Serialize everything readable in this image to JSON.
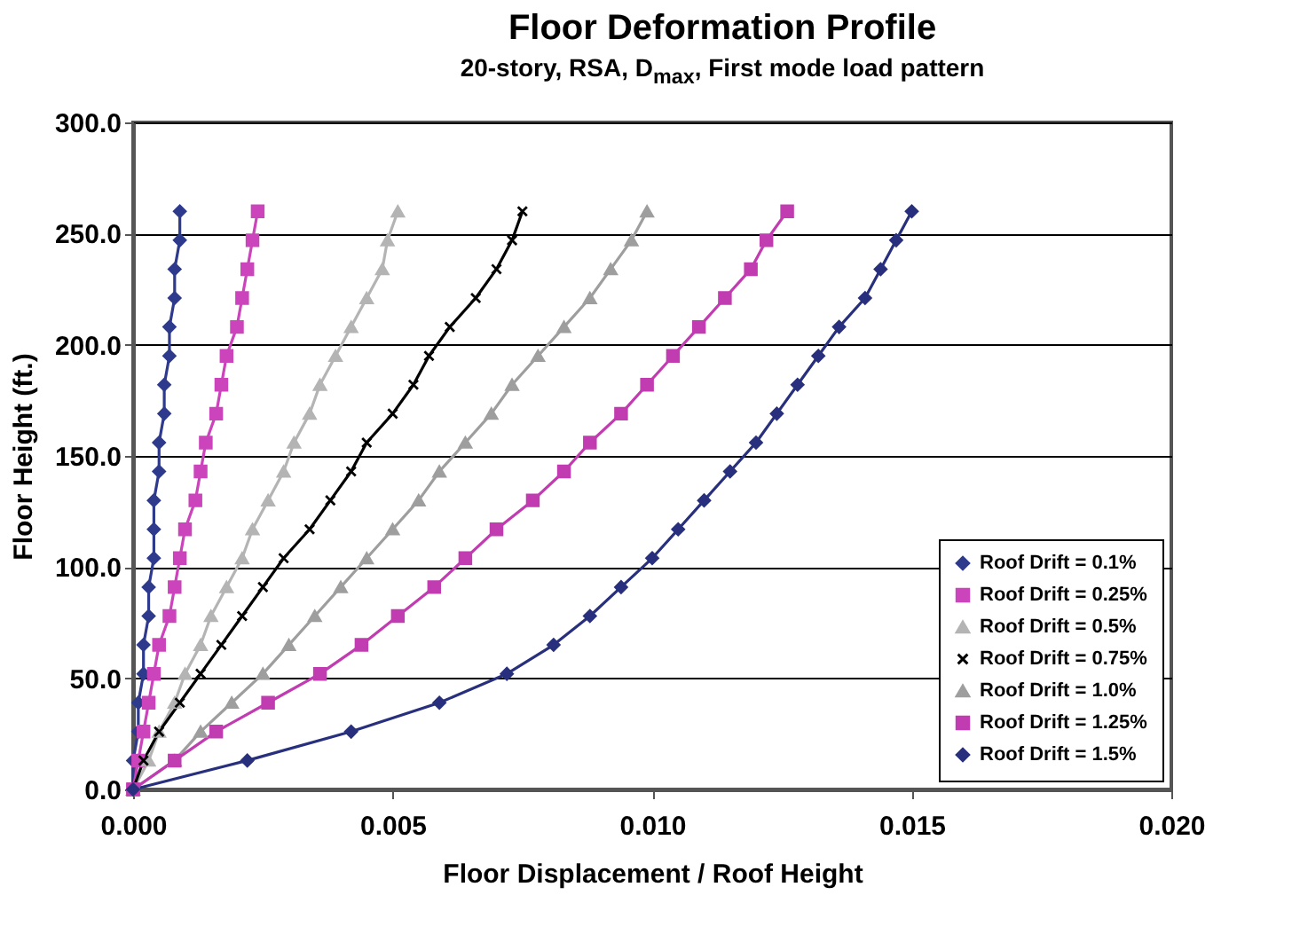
{
  "chart_data": {
    "type": "line",
    "title": "Floor Deformation Profile",
    "subtitle": "20-story, RSA, D$_{max}$, First mode load pattern",
    "xlabel": "Floor Displacement / Roof Height",
    "ylabel": "Floor Height (ft.)",
    "series": [
      {
        "name": "Roof Drift = 0.1%",
        "color": "#2e3a8c",
        "marker": "diamond",
        "x": [
          0,
          0,
          0.0001,
          0.0001,
          0.0002,
          0.0002,
          0.0003,
          0.0003,
          0.0004,
          0.0004,
          0.0004,
          0.0005,
          0.0005,
          0.0006,
          0.0006,
          0.0007,
          0.0007,
          0.0008,
          0.0008,
          0.0009,
          0.0009
        ],
        "values": [
          0,
          13,
          26,
          39,
          52,
          65,
          78,
          91,
          104,
          117,
          130,
          143,
          156,
          169,
          182,
          195,
          208,
          221,
          234,
          247,
          260
        ]
      },
      {
        "name": "Roof Drift = 0.25%",
        "color": "#cc44bb",
        "marker": "square",
        "x": [
          0,
          0.0001,
          0.0002,
          0.0003,
          0.0004,
          0.0005,
          0.0007,
          0.0008,
          0.0009,
          0.001,
          0.0012,
          0.0013,
          0.0014,
          0.0016,
          0.0017,
          0.0018,
          0.002,
          0.0021,
          0.0022,
          0.0023,
          0.0024
        ],
        "values": [
          0,
          13,
          26,
          39,
          52,
          65,
          78,
          91,
          104,
          117,
          130,
          143,
          156,
          169,
          182,
          195,
          208,
          221,
          234,
          247,
          260
        ]
      },
      {
        "name": "Roof Drift = 0.5%",
        "color": "#b4b4b4",
        "marker": "triangle",
        "x": [
          0,
          0.0003,
          0.0005,
          0.0008,
          0.001,
          0.0013,
          0.0015,
          0.0018,
          0.0021,
          0.0023,
          0.0026,
          0.0029,
          0.0031,
          0.0034,
          0.0036,
          0.0039,
          0.0042,
          0.0045,
          0.0048,
          0.0049,
          0.0051
        ],
        "values": [
          0,
          13,
          26,
          39,
          52,
          65,
          78,
          91,
          104,
          117,
          130,
          143,
          156,
          169,
          182,
          195,
          208,
          221,
          234,
          247,
          260
        ]
      },
      {
        "name": "Roof Drift = 0.75%",
        "color": "#000000",
        "marker": "cross",
        "x": [
          0,
          0.0002,
          0.0005,
          0.0009,
          0.0013,
          0.0017,
          0.0021,
          0.0025,
          0.0029,
          0.0034,
          0.0038,
          0.0042,
          0.0045,
          0.005,
          0.0054,
          0.0057,
          0.0061,
          0.0066,
          0.007,
          0.0073,
          0.0075
        ],
        "values": [
          0,
          13,
          26,
          39,
          52,
          65,
          78,
          91,
          104,
          117,
          130,
          143,
          156,
          169,
          182,
          195,
          208,
          221,
          234,
          247,
          260
        ]
      },
      {
        "name": "Roof Drift = 1.0%",
        "color": "#9e9e9e",
        "marker": "triangle",
        "x": [
          0,
          0.0008,
          0.0013,
          0.0019,
          0.0025,
          0.003,
          0.0035,
          0.004,
          0.0045,
          0.005,
          0.0055,
          0.0059,
          0.0064,
          0.0069,
          0.0073,
          0.0078,
          0.0083,
          0.0088,
          0.0092,
          0.0096,
          0.0099
        ],
        "values": [
          0,
          13,
          26,
          39,
          52,
          65,
          78,
          91,
          104,
          117,
          130,
          143,
          156,
          169,
          182,
          195,
          208,
          221,
          234,
          247,
          260
        ]
      },
      {
        "name": "Roof Drift = 1.25%",
        "color": "#c13cb0",
        "marker": "square",
        "x": [
          0,
          0.0008,
          0.0016,
          0.0026,
          0.0036,
          0.0044,
          0.0051,
          0.0058,
          0.0064,
          0.007,
          0.0077,
          0.0083,
          0.0088,
          0.0094,
          0.0099,
          0.0104,
          0.0109,
          0.0114,
          0.0119,
          0.0122,
          0.0126
        ],
        "values": [
          0,
          13,
          26,
          39,
          52,
          65,
          78,
          91,
          104,
          117,
          130,
          143,
          156,
          169,
          182,
          195,
          208,
          221,
          234,
          247,
          260
        ]
      },
      {
        "name": "Roof Drift = 1.5%",
        "color": "#28307e",
        "marker": "diamond",
        "x": [
          0,
          0.0022,
          0.0042,
          0.0059,
          0.0072,
          0.0081,
          0.0088,
          0.0094,
          0.01,
          0.0105,
          0.011,
          0.0115,
          0.012,
          0.0124,
          0.0128,
          0.0132,
          0.0136,
          0.0141,
          0.0144,
          0.0147,
          0.015
        ],
        "values": [
          0,
          13,
          26,
          39,
          52,
          65,
          78,
          91,
          104,
          117,
          130,
          143,
          156,
          169,
          182,
          195,
          208,
          221,
          234,
          247,
          260
        ]
      }
    ],
    "xlim": [
      0,
      0.02
    ],
    "xticks": [
      {
        "value": 0,
        "label": "0.000"
      },
      {
        "value": 0.005,
        "label": "0.005"
      },
      {
        "value": 0.01,
        "label": "0.010"
      },
      {
        "value": 0.015,
        "label": "0.015"
      },
      {
        "value": 0.02,
        "label": "0.020"
      }
    ],
    "ylim": [
      0,
      300
    ],
    "yticks": [
      {
        "value": 0,
        "label": "0.0"
      },
      {
        "value": 50,
        "label": "50.0"
      },
      {
        "value": 100,
        "label": "100.0"
      },
      {
        "value": 150,
        "label": "150.0"
      },
      {
        "value": 200,
        "label": "200.0"
      },
      {
        "value": 250,
        "label": "250.0"
      },
      {
        "value": 300,
        "label": "300.0"
      }
    ],
    "grid": "y",
    "legend": "bottom right",
    "line_style": "solid"
  }
}
